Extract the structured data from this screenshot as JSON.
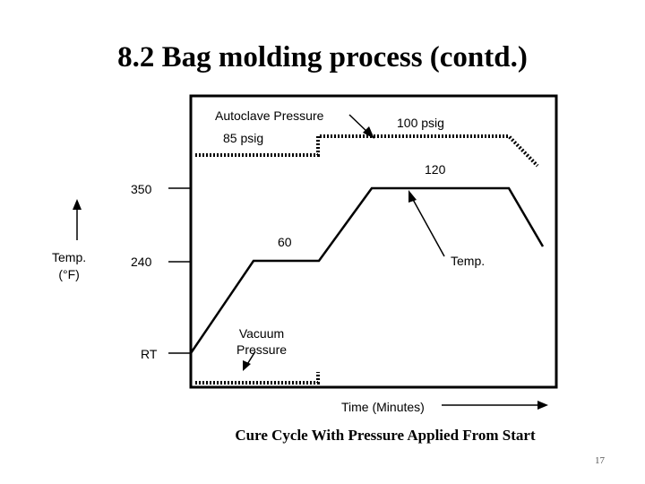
{
  "slide": {
    "title": "8.2 Bag molding process (contd.)",
    "caption": "Cure Cycle With Pressure Applied From Start",
    "page_number": "17"
  },
  "diagram": {
    "autoclave_pressure_label": "Autoclave Pressure",
    "pressure_85_label": "85 psig",
    "pressure_100_label": "100 psig",
    "hold_120_label": "120",
    "hold_60_label": "60",
    "temp_curve_label": "Temp.",
    "vacuum_label": "Vacuum\nPressure",
    "time_axis_label": "Time (Minutes)",
    "temp_axis_label": "Temp.\n(°F)",
    "levels": {
      "high": "350",
      "mid": "240",
      "low": "RT"
    }
  }
}
